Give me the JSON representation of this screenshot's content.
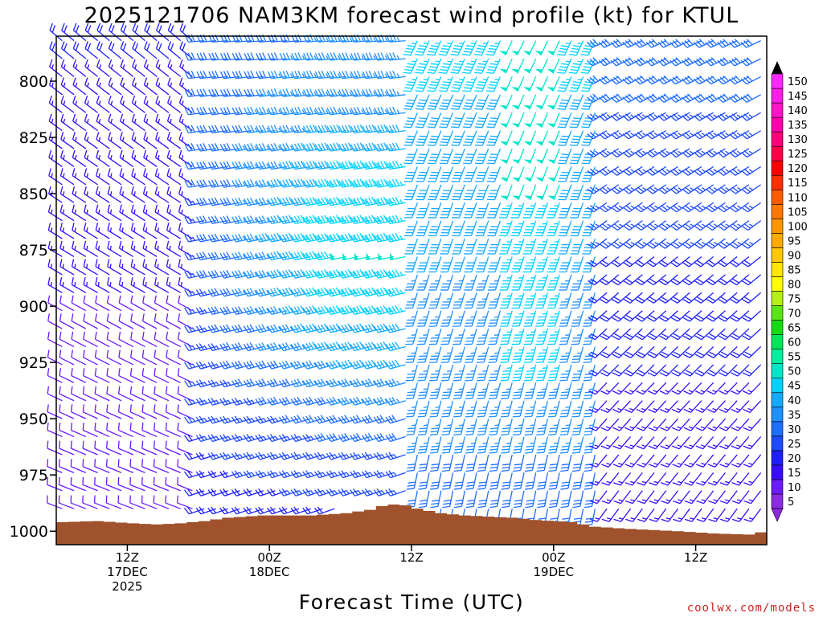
{
  "chart_data": {
    "type": "wind_barb_profile",
    "title": "2025121706 NAM3KM forecast wind profile (kt) for KTUL",
    "xlabel": "Forecast Time (UTC)",
    "ylabel": "",
    "y_axis": {
      "label": "",
      "ticks": [
        "800",
        "825",
        "850",
        "875",
        "900",
        "925",
        "950",
        "975",
        "1000"
      ],
      "range_hpa": [
        780,
        1006
      ]
    },
    "x_axis": {
      "range_hours_from_start": [
        0,
        60
      ],
      "ticks": [
        {
          "hour": 6,
          "lines": [
            "12Z",
            "17DEC",
            "2025"
          ]
        },
        {
          "hour": 18,
          "lines": [
            "00Z",
            "18DEC"
          ]
        },
        {
          "hour": 30,
          "lines": [
            "12Z",
            ""
          ]
        },
        {
          "hour": 42,
          "lines": [
            "00Z",
            "19DEC"
          ]
        },
        {
          "hour": 54,
          "lines": [
            "12Z",
            ""
          ]
        }
      ]
    },
    "colorbar": {
      "levels": [
        "5",
        "10",
        "15",
        "20",
        "25",
        "30",
        "35",
        "40",
        "45",
        "50",
        "55",
        "60",
        "65",
        "70",
        "75",
        "80",
        "85",
        "90",
        "95",
        "100",
        "105",
        "110",
        "115",
        "120",
        "125",
        "130",
        "135",
        "140",
        "145",
        "150"
      ],
      "colors": [
        "#8a2be2",
        "#6a1bff",
        "#3a0cff",
        "#1e1eff",
        "#1e4bff",
        "#1e6eff",
        "#1e90ff",
        "#14aaff",
        "#00d2ff",
        "#00e6c8",
        "#00f0a0",
        "#00e65a",
        "#14dc14",
        "#5ae614",
        "#b4f014",
        "#ffff00",
        "#ffe600",
        "#ffc800",
        "#ffaa00",
        "#ff9600",
        "#ff7800",
        "#ff5a00",
        "#ff2d00",
        "#ff0000",
        "#ff0046",
        "#ff0078",
        "#ff00aa",
        "#ff14c8",
        "#ff1ee6",
        "#ff28ff"
      ]
    },
    "terrain_color": "#a0522d",
    "surface_pressure_hpa": [
      {
        "hour": 0,
        "p": 996
      },
      {
        "hour": 3,
        "p": 995.5
      },
      {
        "hour": 6,
        "p": 996.5
      },
      {
        "hour": 8,
        "p": 997
      },
      {
        "hour": 10,
        "p": 996.5
      },
      {
        "hour": 12,
        "p": 995.5
      },
      {
        "hour": 14,
        "p": 994
      },
      {
        "hour": 17,
        "p": 993
      },
      {
        "hour": 21,
        "p": 993
      },
      {
        "hour": 24,
        "p": 992
      },
      {
        "hour": 26,
        "p": 990.5
      },
      {
        "hour": 27.5,
        "p": 988
      },
      {
        "hour": 29,
        "p": 988.5
      },
      {
        "hour": 30,
        "p": 990
      },
      {
        "hour": 32,
        "p": 992
      },
      {
        "hour": 34,
        "p": 993
      },
      {
        "hour": 38,
        "p": 994
      },
      {
        "hour": 40,
        "p": 995
      },
      {
        "hour": 43,
        "p": 996
      },
      {
        "hour": 45,
        "p": 998
      },
      {
        "hour": 48,
        "p": 999
      },
      {
        "hour": 52,
        "p": 1000
      },
      {
        "hour": 55,
        "p": 1001
      },
      {
        "hour": 58,
        "p": 1001.5
      },
      {
        "hour": 60,
        "p": 999.5
      }
    ],
    "wind_profile_description": "Wind barbs at every forecast hour (0–60) and at pressure levels 780–1000 hPa; speeds in knots colored by the colorbar. Hours 0–12: light westerly to northwesterly winds 5–15 kt. Hours 12–29: increasing westerly/west-southwesterly winds 25–55 kt, strongest around 850–900 hPa near hour 26. Hours 30–45: southerly/south-southwesterly 30–50 kt. Hours 45–60: southwesterly winds weakening to 10–30 kt near the surface."
  },
  "credit": "coolwx.com/models"
}
